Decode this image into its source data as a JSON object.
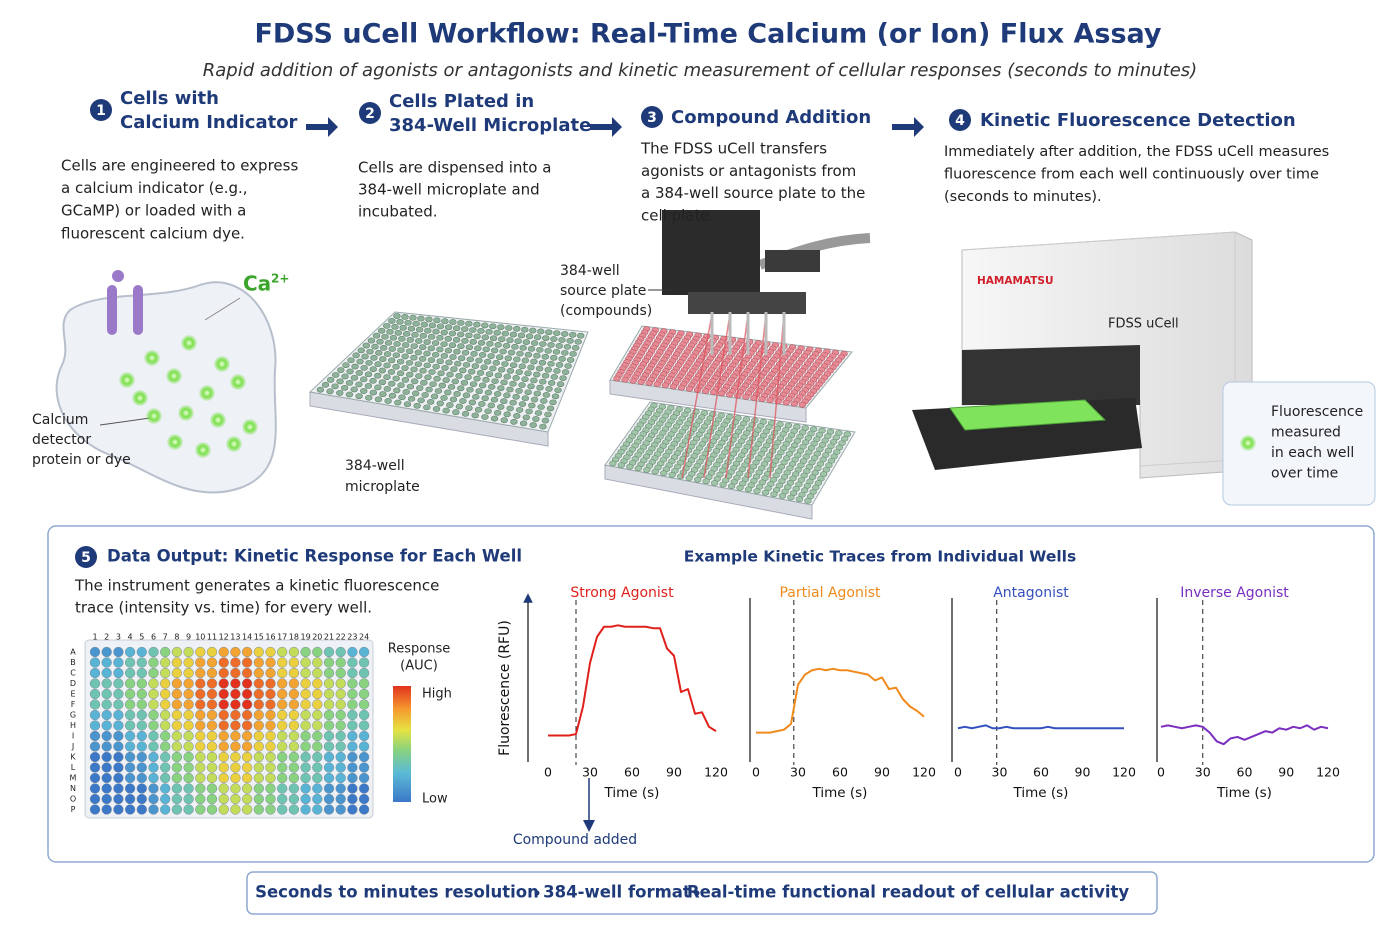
{
  "header": {
    "title": "FDSS uCell Workflow: Real-Time Calcium (or Ion) Flux Assay",
    "subtitle": "Rapid addition of agonists or antagonists and kinetic measurement of cellular responses (seconds to minutes)"
  },
  "steps": [
    {
      "number": "1",
      "title_lines": [
        "Cells with",
        "Calcium Indicator"
      ],
      "text_lines": [
        "Cells are engineered to express",
        "a calcium indicator (e.g.,",
        "GCaMP) or loaded with a",
        "fluorescent calcium dye."
      ]
    },
    {
      "number": "2",
      "title_lines": [
        "Cells Plated in",
        "384-Well Microplate"
      ],
      "text_lines": [
        "Cells are dispensed into a",
        "384-well microplate and",
        "incubated."
      ]
    },
    {
      "number": "3",
      "title_lines": [
        "Compound Addition"
      ],
      "text_lines": [
        "The FDSS uCell transfers",
        "agonists or antagonists from",
        "a 384-well source plate to the",
        "cell plate."
      ]
    },
    {
      "number": "4",
      "title_lines": [
        "Kinetic Fluorescence Detection"
      ],
      "text_lines": [
        "Immediately after addition, the FDSS uCell measures",
        "fluorescence from each well continuously over time",
        "(seconds to minutes)."
      ]
    }
  ],
  "illustration": {
    "ca_label": "Ca",
    "ca_charge": "2+",
    "cell_label_lines": [
      "Calcium",
      "detector",
      "protein or dye"
    ],
    "plate_label_lines": [
      "384-well",
      "microplate"
    ],
    "source_label_lines": [
      "384-well",
      "source plate",
      "(compounds)"
    ],
    "brand": "HAMAMATSU",
    "instrument": "FDSS uCell",
    "panel_lines": [
      "Fluorescence",
      "measured",
      "in each well",
      "over time"
    ]
  },
  "output": {
    "number": "5",
    "title": "Data Output: Kinetic Response for Each Well",
    "text_lines": [
      "The instrument generates a kinetic fluorescence",
      "trace (intensity vs. time) for every well."
    ],
    "traces_title": "Example Kinetic Traces from Individual Wells"
  },
  "heatmap": {
    "legend_lines": [
      "Response",
      "(AUC)"
    ],
    "high": "High",
    "low": "Low",
    "columns": [
      1,
      2,
      3,
      4,
      5,
      6,
      7,
      8,
      9,
      10,
      11,
      12,
      13,
      14,
      15,
      16,
      17,
      18,
      19,
      20,
      21,
      22,
      23,
      24
    ],
    "rows": [
      "A",
      "B",
      "C",
      "D",
      "E",
      "F",
      "G",
      "H",
      "I",
      "J",
      "K",
      "L",
      "M",
      "N",
      "O",
      "P"
    ],
    "values": [
      [
        1,
        1,
        1,
        2,
        2,
        3,
        4,
        5,
        5,
        6,
        6,
        7,
        7,
        7,
        6,
        6,
        5,
        5,
        4,
        4,
        3,
        3,
        2,
        2
      ],
      [
        2,
        2,
        2,
        3,
        3,
        4,
        5,
        6,
        6,
        7,
        7,
        8,
        8,
        8,
        7,
        7,
        6,
        6,
        5,
        5,
        4,
        4,
        3,
        3
      ],
      [
        2,
        2,
        2,
        3,
        3,
        4,
        5,
        6,
        6,
        7,
        7,
        8,
        8,
        8,
        7,
        7,
        6,
        6,
        5,
        5,
        4,
        4,
        3,
        3
      ],
      [
        3,
        3,
        3,
        4,
        4,
        5,
        6,
        7,
        7,
        8,
        8,
        9,
        9,
        9,
        8,
        8,
        7,
        7,
        6,
        6,
        5,
        5,
        4,
        4
      ],
      [
        3,
        3,
        3,
        4,
        4,
        5,
        6,
        7,
        7,
        8,
        8,
        9,
        9,
        9,
        8,
        8,
        7,
        7,
        6,
        6,
        5,
        5,
        4,
        4
      ],
      [
        3,
        3,
        3,
        4,
        4,
        5,
        6,
        7,
        7,
        8,
        8,
        9,
        9,
        9,
        8,
        8,
        7,
        7,
        6,
        6,
        5,
        5,
        4,
        4
      ],
      [
        2,
        2,
        2,
        3,
        3,
        4,
        5,
        6,
        6,
        7,
        7,
        8,
        8,
        8,
        7,
        7,
        6,
        6,
        5,
        5,
        4,
        4,
        3,
        3
      ],
      [
        2,
        2,
        2,
        3,
        3,
        4,
        5,
        6,
        6,
        7,
        7,
        8,
        8,
        8,
        7,
        7,
        6,
        6,
        5,
        5,
        4,
        4,
        3,
        3
      ],
      [
        1,
        1,
        1,
        2,
        2,
        3,
        4,
        5,
        5,
        6,
        6,
        7,
        7,
        7,
        6,
        6,
        5,
        5,
        4,
        4,
        3,
        3,
        2,
        2
      ],
      [
        1,
        1,
        1,
        2,
        2,
        3,
        4,
        5,
        5,
        6,
        6,
        7,
        7,
        7,
        6,
        6,
        5,
        5,
        4,
        4,
        3,
        3,
        2,
        2
      ],
      [
        0,
        0,
        0,
        1,
        1,
        2,
        3,
        4,
        4,
        5,
        5,
        6,
        6,
        6,
        5,
        5,
        4,
        4,
        3,
        3,
        2,
        2,
        1,
        1
      ],
      [
        0,
        0,
        0,
        1,
        1,
        2,
        3,
        4,
        4,
        5,
        5,
        6,
        6,
        6,
        5,
        5,
        4,
        4,
        3,
        3,
        2,
        2,
        1,
        1
      ],
      [
        0,
        0,
        0,
        1,
        1,
        2,
        3,
        4,
        4,
        5,
        5,
        6,
        6,
        6,
        5,
        5,
        4,
        4,
        3,
        3,
        2,
        2,
        1,
        1
      ],
      [
        0,
        0,
        0,
        0,
        0,
        1,
        2,
        3,
        3,
        4,
        4,
        5,
        5,
        5,
        4,
        4,
        3,
        3,
        2,
        2,
        1,
        1,
        0,
        0
      ],
      [
        0,
        0,
        0,
        0,
        0,
        1,
        2,
        3,
        3,
        4,
        4,
        5,
        5,
        5,
        4,
        4,
        3,
        3,
        2,
        2,
        1,
        1,
        0,
        0
      ],
      [
        0,
        0,
        0,
        0,
        0,
        1,
        2,
        3,
        3,
        4,
        4,
        5,
        5,
        5,
        4,
        4,
        3,
        3,
        2,
        2,
        1,
        1,
        0,
        0
      ]
    ]
  },
  "chart_data": [
    {
      "type": "line",
      "title": "Strong Agonist",
      "color": "#e0201b",
      "ylabel": "Fluorescence (RFU)",
      "xlabel": "Time (s)",
      "event_x": 20,
      "event_label": "Compound added",
      "x": [
        0,
        5,
        10,
        15,
        20,
        25,
        30,
        35,
        40,
        45,
        50,
        55,
        60,
        65,
        70,
        75,
        80,
        85,
        90,
        95,
        100,
        105,
        110,
        115,
        120
      ],
      "values": [
        1,
        1,
        1,
        1,
        1.1,
        3,
        6,
        7.8,
        8.5,
        8.5,
        8.6,
        8.5,
        8.5,
        8.5,
        8.5,
        8.4,
        8.4,
        7,
        6.5,
        4,
        4.2,
        2.5,
        2.6,
        1.6,
        1.3
      ],
      "xlim": [
        0,
        120
      ],
      "xticks": [
        0,
        30,
        60,
        90,
        120
      ],
      "ylim": [
        0,
        10
      ]
    },
    {
      "type": "line",
      "title": "Partial Agonist",
      "color": "#f08a1c",
      "xlabel": "Time (s)",
      "event_x": 27,
      "x": [
        0,
        5,
        10,
        15,
        20,
        25,
        30,
        35,
        40,
        45,
        50,
        55,
        60,
        65,
        70,
        75,
        80,
        85,
        90,
        95,
        100,
        105,
        110,
        115,
        120
      ],
      "values": [
        1.2,
        1.2,
        1.2,
        1.3,
        1.4,
        1.8,
        4.5,
        5.2,
        5.5,
        5.6,
        5.5,
        5.6,
        5.5,
        5.5,
        5.4,
        5.3,
        5.2,
        4.8,
        5,
        4.2,
        4.3,
        3.5,
        3,
        2.7,
        2.3
      ],
      "xlim": [
        0,
        120
      ],
      "xticks": [
        0,
        30,
        60,
        90,
        120
      ],
      "ylim": [
        0,
        10
      ]
    },
    {
      "type": "line",
      "title": "Antagonist",
      "color": "#3450c0",
      "xlabel": "Time (s)",
      "event_x": 28,
      "x": [
        0,
        5,
        10,
        15,
        20,
        25,
        30,
        35,
        40,
        45,
        50,
        55,
        60,
        65,
        70,
        75,
        80,
        85,
        90,
        95,
        100,
        105,
        110,
        115,
        120
      ],
      "values": [
        1.5,
        1.6,
        1.5,
        1.6,
        1.7,
        1.5,
        1.5,
        1.6,
        1.5,
        1.5,
        1.5,
        1.5,
        1.5,
        1.6,
        1.5,
        1.5,
        1.5,
        1.5,
        1.5,
        1.5,
        1.5,
        1.5,
        1.5,
        1.5,
        1.5
      ],
      "xlim": [
        0,
        120
      ],
      "xticks": [
        0,
        30,
        60,
        90,
        120
      ],
      "ylim": [
        0,
        10
      ]
    },
    {
      "type": "line",
      "title": "Inverse Agonist",
      "color": "#7a2fc0",
      "xlabel": "Time (s)",
      "event_x": 30,
      "x": [
        0,
        5,
        10,
        15,
        20,
        25,
        30,
        35,
        40,
        45,
        50,
        55,
        60,
        65,
        70,
        75,
        80,
        85,
        90,
        95,
        100,
        105,
        110,
        115,
        120
      ],
      "values": [
        1.6,
        1.7,
        1.6,
        1.5,
        1.6,
        1.7,
        1.6,
        1.2,
        0.6,
        0.4,
        0.8,
        0.9,
        0.7,
        0.9,
        1.1,
        1.3,
        1.2,
        1.5,
        1.4,
        1.6,
        1.5,
        1.7,
        1.4,
        1.6,
        1.5
      ],
      "xlim": [
        0,
        120
      ],
      "xticks": [
        0,
        30,
        60,
        90,
        120
      ],
      "ylim": [
        0,
        10
      ]
    }
  ],
  "footer": {
    "items": [
      "Seconds to minutes resolution",
      "384-well format",
      "Real-time functional readout of cellular activity"
    ]
  }
}
